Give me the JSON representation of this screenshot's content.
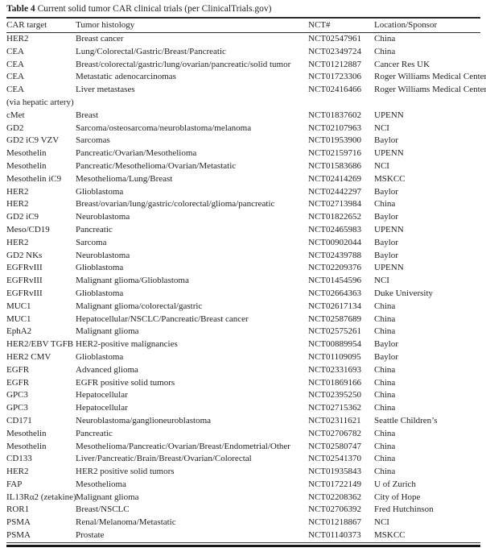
{
  "table": {
    "title_label": "Table 4",
    "title_text": " Current solid tumor CAR clinical trials (per ClinicalTrials.gov)",
    "headers": [
      "CAR target",
      "Tumor histology",
      "NCT#",
      "Location/Sponsor"
    ],
    "rows": [
      [
        "HER2",
        "Breast cancer",
        "NCT02547961",
        "China"
      ],
      [
        "CEA",
        "Lung/Colorectal/Gastric/Breast/Pancreatic",
        "NCT02349724",
        "China"
      ],
      [
        "CEA",
        "Breast/colorectal/gastric/lung/ovarian/pancreatic/solid tumor",
        "NCT01212887",
        "Cancer Res UK"
      ],
      [
        "CEA",
        "Metastatic adenocarcinomas",
        "NCT01723306",
        "Roger Williams Medical Center"
      ],
      [
        "CEA",
        "Liver metastases",
        "NCT02416466",
        "Roger Williams Medical Center"
      ],
      [
        "(via hepatic artery)",
        "",
        "",
        ""
      ],
      [
        "cMet",
        "Breast",
        "NCT01837602",
        "UPENN"
      ],
      [
        "GD2",
        "Sarcoma/osteosarcoma/neuroblastoma/melanoma",
        "NCT02107963",
        "NCI"
      ],
      [
        "GD2 iC9 VZV",
        "Sarcomas",
        "NCT01953900",
        "Baylor"
      ],
      [
        "Mesothelin",
        "Pancreatic/Ovarian/Mesothelioma",
        "NCT02159716",
        "UPENN"
      ],
      [
        "Mesothelin",
        "Pancreatic/Mesothelioma/Ovarian/Metastatic",
        "NCT01583686",
        "NCI"
      ],
      [
        "Mesothelin iC9",
        "Mesothelioma/Lung/Breast",
        "NCT02414269",
        "MSKCC"
      ],
      [
        "HER2",
        "Glioblastoma",
        "NCT02442297",
        "Baylor"
      ],
      [
        "HER2",
        "Breast/ovarian/lung/gastric/colorectal/glioma/pancreatic",
        "NCT02713984",
        "China"
      ],
      [
        "GD2 iC9",
        "Neuroblastoma",
        "NCT01822652",
        "Baylor"
      ],
      [
        "Meso/CD19",
        "Pancreatic",
        "NCT02465983",
        "UPENN"
      ],
      [
        "HER2",
        "Sarcoma",
        "NCT00902044",
        "Baylor"
      ],
      [
        "GD2 NKs",
        "Neuroblastoma",
        "NCT02439788",
        "Baylor"
      ],
      [
        "EGFRvIII",
        "Glioblastoma",
        "NCT02209376",
        "UPENN"
      ],
      [
        "EGFRvIII",
        "Malignant glioma/Glioblastoma",
        "NCT01454596",
        "NCI"
      ],
      [
        "EGFRvIII",
        "Glioblastoma",
        "NCT02664363",
        "Duke University"
      ],
      [
        "MUC1",
        "Malignant glioma/colorectal/gastric",
        "NCT02617134",
        "China"
      ],
      [
        "MUC1",
        "Hepatocellular/NSCLC/Pancreatic/Breast cancer",
        "NCT02587689",
        "China"
      ],
      [
        "EphA2",
        "Malignant glioma",
        "NCT02575261",
        "China"
      ],
      [
        "HER2/EBV TGFB",
        "HER2-positive malignancies",
        "NCT00889954",
        "Baylor"
      ],
      [
        "HER2 CMV",
        "Glioblastoma",
        "NCT01109095",
        "Baylor"
      ],
      [
        "EGFR",
        "Advanced glioma",
        "NCT02331693",
        "China"
      ],
      [
        "EGFR",
        "EGFR positive solid tumors",
        "NCT01869166",
        "China"
      ],
      [
        "GPC3",
        "Hepatocellular",
        "NCT02395250",
        "China"
      ],
      [
        "GPC3",
        "Hepatocellular",
        "NCT02715362",
        "China"
      ],
      [
        "CD171",
        "Neuroblastoma/ganglioneuroblastoma",
        "NCT02311621",
        "Seattle Children’s"
      ],
      [
        "Mesothelin",
        "Pancreatic",
        "NCT02706782",
        "China"
      ],
      [
        "Mesothelin",
        "Mesothelioma/Pancreatic/Ovarian/Breast/Endometrial/Other",
        "NCT02580747",
        "China"
      ],
      [
        "CD133",
        "Liver/Pancreatic/Brain/Breast/Ovarian/Colorectal",
        "NCT02541370",
        "China"
      ],
      [
        "HER2",
        "HER2 positive solid tumors",
        "NCT01935843",
        "China"
      ],
      [
        "FAP",
        "Mesothelioma",
        "NCT01722149",
        "U of Zurich"
      ],
      [
        "IL13Rα2 (zetakine)",
        "Malignant glioma",
        "NCT02208362",
        "City of Hope"
      ],
      [
        "ROR1",
        "Breast/NSCLC",
        "NCT02706392",
        "Fred Hutchinson"
      ],
      [
        "PSMA",
        "Renal/Melanoma/Metastatic",
        "NCT01218867",
        "NCI"
      ],
      [
        "PSMA",
        "Prostate",
        "NCT01140373",
        "MSKCC"
      ]
    ]
  }
}
